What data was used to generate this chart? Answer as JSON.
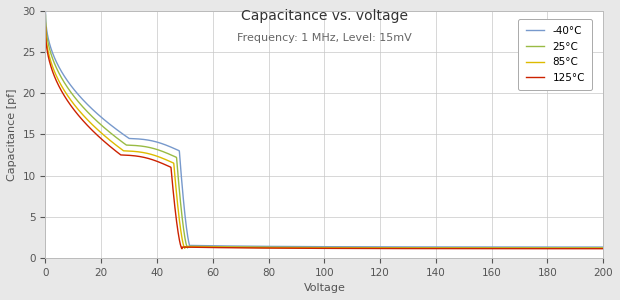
{
  "title": "Capacitance vs. voltage",
  "subtitle": "Frequency: 1 MHz, Level: 15mV",
  "xlabel": "Voltage",
  "ylabel": "Capacitance [pf]",
  "xlim": [
    0,
    200
  ],
  "ylim": [
    0,
    30
  ],
  "xticks": [
    0,
    20,
    40,
    60,
    80,
    100,
    120,
    140,
    160,
    180,
    200
  ],
  "yticks": [
    0,
    5,
    10,
    15,
    20,
    25,
    30
  ],
  "background_color": "#e8e8e8",
  "plot_background": "#ffffff",
  "grid_color": "#c8c8c8",
  "temperatures": [
    "-40°C",
    "25°C",
    "85°C",
    "125°C"
  ],
  "colors": [
    "#7799cc",
    "#99bb44",
    "#ddbb00",
    "#cc2200"
  ],
  "title_fontsize": 10,
  "subtitle_fontsize": 8,
  "axis_label_fontsize": 8,
  "tick_fontsize": 7.5,
  "legend_fontsize": 7.5,
  "curve_params": [
    {
      "c0": 30.0,
      "c_knee": 13.0,
      "v_inflect": 30,
      "v_knee": 48,
      "v_drop": 52,
      "c_flat": 1.3,
      "spread": 1.0
    },
    {
      "c0": 29.5,
      "c_knee": 12.2,
      "v_inflect": 29,
      "v_knee": 47,
      "v_drop": 51,
      "c_flat": 1.2,
      "spread": 0.93
    },
    {
      "c0": 28.5,
      "c_knee": 11.5,
      "v_inflect": 28,
      "v_knee": 46,
      "v_drop": 50,
      "c_flat": 1.15,
      "spread": 0.86
    },
    {
      "c0": 28.0,
      "c_knee": 11.0,
      "v_inflect": 27,
      "v_knee": 45,
      "v_drop": 49,
      "c_flat": 1.1,
      "spread": 0.82
    }
  ]
}
